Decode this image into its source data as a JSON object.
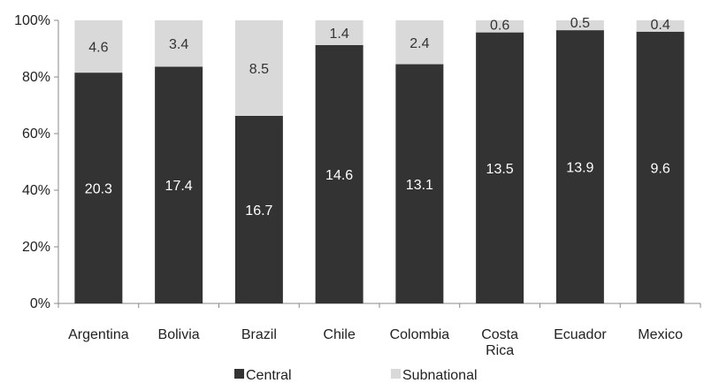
{
  "chart_data": {
    "type": "bar",
    "stacked": true,
    "normalized_percent": true,
    "categories": [
      "Argentina",
      "Bolivia",
      "Brazil",
      "Chile",
      "Colombia",
      "Costa Rica",
      "Ecuador",
      "Mexico"
    ],
    "series": [
      {
        "name": "Central",
        "values": [
          20.3,
          17.4,
          16.7,
          14.6,
          13.1,
          13.5,
          13.9,
          9.6
        ],
        "color": "#333333",
        "label_color": "#ffffff"
      },
      {
        "name": "Subnational",
        "values": [
          4.6,
          3.4,
          8.5,
          1.4,
          2.4,
          0.6,
          0.5,
          0.4
        ],
        "color": "#d9d9d9",
        "label_color": "#333333"
      }
    ],
    "y_ticks": [
      "0%",
      "20%",
      "40%",
      "60%",
      "80%",
      "100%"
    ],
    "ylim": [
      0,
      100
    ],
    "grid": false,
    "legend_position": "bottom"
  }
}
